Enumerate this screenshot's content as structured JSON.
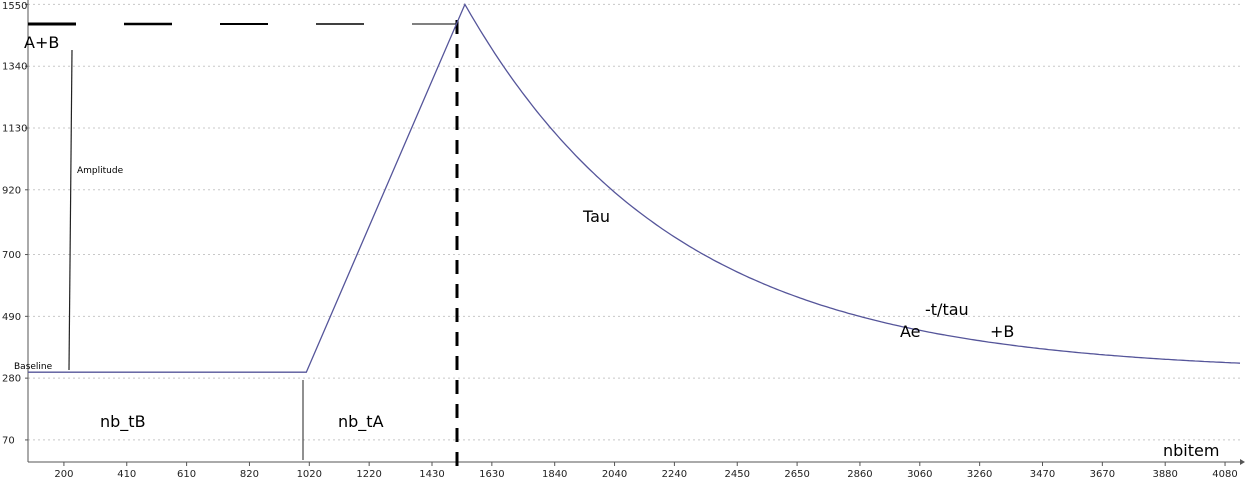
{
  "chart_data": {
    "type": "line",
    "title": "",
    "xlabel": "nbitem",
    "ylabel": "",
    "xlim": [
      80,
      4130
    ],
    "ylim": [
      -5,
      1565
    ],
    "x_ticks": [
      200,
      410,
      610,
      820,
      1020,
      1220,
      1430,
      1630,
      1840,
      2040,
      2240,
      2450,
      2650,
      2860,
      3060,
      3260,
      3470,
      3670,
      3880,
      4080
    ],
    "y_ticks": [
      70,
      280,
      490,
      700,
      920,
      1130,
      1340,
      1550
    ],
    "grid": "horizontal-dotted",
    "series": [
      {
        "name": "",
        "color": "#55559a",
        "baseline": 300,
        "peak": 1550,
        "rise_start_x": 1010,
        "peak_x": 1540,
        "end_x": 4130,
        "points": [
          [
            80,
            300
          ],
          [
            1010,
            300
          ],
          [
            1540,
            1550
          ],
          [
            1630,
            1321
          ],
          [
            1840,
            944
          ],
          [
            2040,
            705
          ],
          [
            2240,
            543
          ],
          [
            2450,
            432
          ],
          [
            2650,
            367
          ],
          [
            2860,
            337
          ],
          [
            3060,
            327
          ],
          [
            3260,
            320
          ],
          [
            3470,
            312
          ],
          [
            3670,
            307
          ],
          [
            3880,
            304
          ],
          [
            4080,
            302
          ],
          [
            4130,
            301
          ]
        ]
      }
    ],
    "annotations": {
      "amplitude_top": "A+B",
      "amplitude": "Amplitude",
      "baseline": "Baseline",
      "nb_tB": "nb_tB",
      "nb_tA": "nb_tA",
      "tau": "Tau",
      "formula_base": "Ae",
      "formula_exponent": "-t/tau",
      "formula_plus": "+B"
    }
  }
}
